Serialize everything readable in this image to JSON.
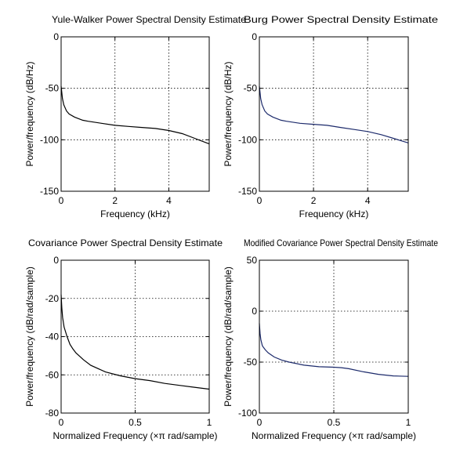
{
  "chart_data": [
    {
      "type": "line",
      "title": "Yule-Walker Power Spectral Density Estimate",
      "xlabel": "Frequency (kHz)",
      "ylabel": "Power/frequency (dB/Hz)",
      "xlim": [
        0,
        5.5
      ],
      "ylim": [
        -150,
        0
      ],
      "xticks": [
        0,
        2,
        4
      ],
      "yticks": [
        0,
        -50,
        -100,
        -150
      ],
      "grid": true,
      "series": [
        {
          "color": "#000000",
          "x": [
            0,
            0.05,
            0.1,
            0.2,
            0.3,
            0.5,
            0.8,
            1.0,
            1.5,
            2.0,
            2.5,
            3.0,
            3.5,
            4.0,
            4.5,
            5.0,
            5.5
          ],
          "y": [
            -48,
            -60,
            -66,
            -72,
            -75,
            -78,
            -81,
            -82,
            -84,
            -86,
            -87,
            -88,
            -89,
            -91,
            -94,
            -99,
            -104
          ]
        }
      ]
    },
    {
      "type": "line",
      "title": "Burg Power Spectral Density Estimate",
      "xlabel": "Frequency (kHz)",
      "ylabel": "Power/frequency (dB/Hz)",
      "xlim": [
        0,
        5.5
      ],
      "ylim": [
        -150,
        0
      ],
      "xticks": [
        0,
        2,
        4
      ],
      "yticks": [
        0,
        -50,
        -100,
        -150
      ],
      "grid": true,
      "series": [
        {
          "color": "#1c2a6b",
          "x": [
            0,
            0.05,
            0.1,
            0.2,
            0.3,
            0.5,
            0.8,
            1.0,
            1.5,
            2.0,
            2.5,
            3.0,
            3.5,
            4.0,
            4.5,
            5.0,
            5.5
          ],
          "y": [
            -48,
            -60,
            -66,
            -72,
            -75,
            -78,
            -81,
            -82,
            -84,
            -85,
            -86,
            -88,
            -90,
            -92,
            -95,
            -99,
            -103
          ]
        }
      ]
    },
    {
      "type": "line",
      "title": "Covariance Power Spectral Density Estimate",
      "xlabel": "Normalized Frequency  (×π rad/sample)",
      "ylabel": "Power/frequency  (dB/rad/sample)",
      "xlim": [
        0,
        1
      ],
      "ylim": [
        -80,
        0
      ],
      "xticks": [
        0,
        0.5,
        1
      ],
      "yticks": [
        0,
        -20,
        -40,
        -60,
        -80
      ],
      "grid": true,
      "series": [
        {
          "color": "#000000",
          "x": [
            0,
            0.005,
            0.01,
            0.02,
            0.04,
            0.06,
            0.08,
            0.1,
            0.15,
            0.2,
            0.3,
            0.4,
            0.5,
            0.6,
            0.7,
            0.8,
            0.9,
            1.0
          ],
          "y": [
            -18,
            -25,
            -30,
            -35,
            -40,
            -44,
            -46.5,
            -48.5,
            -52,
            -55,
            -58.5,
            -60.5,
            -62,
            -63,
            -64.5,
            -65.5,
            -66.5,
            -67.5
          ]
        }
      ]
    },
    {
      "type": "line",
      "title": "Modified Covariance Power Spectral Density Estimate",
      "xlabel": "Normalized Frequency  (×π rad/sample)",
      "ylabel": "Power/frequency  (dB/rad/sample)",
      "xlim": [
        0,
        1
      ],
      "ylim": [
        -100,
        50
      ],
      "xticks": [
        0,
        0.5,
        1
      ],
      "yticks": [
        50,
        0,
        -50,
        -100
      ],
      "grid": true,
      "series": [
        {
          "color": "#1c2a6b",
          "x": [
            0,
            0.005,
            0.01,
            0.02,
            0.04,
            0.06,
            0.08,
            0.1,
            0.15,
            0.2,
            0.3,
            0.4,
            0.5,
            0.55,
            0.6,
            0.7,
            0.8,
            0.9,
            1.0
          ],
          "y": [
            -12,
            -22,
            -28,
            -34,
            -38,
            -41,
            -43,
            -45,
            -48,
            -50,
            -53,
            -54.5,
            -55,
            -55.5,
            -56.5,
            -59.5,
            -62,
            -63.5,
            -64
          ]
        }
      ]
    }
  ]
}
